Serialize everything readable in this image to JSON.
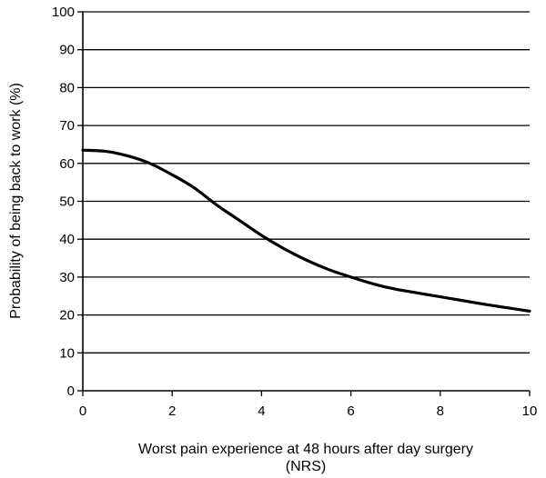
{
  "chart_data": {
    "type": "line",
    "title": "",
    "xlabel": "Worst pain experience at 48 hours after day surgery",
    "xlabel_line2": "(NRS)",
    "ylabel": "Probability of being back to work (%)",
    "xlim": [
      0,
      10
    ],
    "ylim": [
      0,
      100
    ],
    "x_ticks": [
      0,
      2,
      4,
      6,
      8,
      10
    ],
    "y_ticks": [
      0,
      10,
      20,
      30,
      40,
      50,
      60,
      70,
      80,
      90,
      100
    ],
    "grid": "horizontal",
    "legend": "none",
    "series": [
      {
        "color": "#000000",
        "x": [
          0,
          0.5,
          1,
          1.5,
          2,
          2.5,
          3,
          3.5,
          4,
          4.5,
          5,
          5.5,
          6,
          6.5,
          7,
          7.5,
          8,
          8.5,
          9,
          9.5,
          10
        ],
        "y": [
          63.5,
          63.2,
          62,
          60,
          57,
          53.5,
          49,
          45,
          41,
          37.5,
          34.5,
          32,
          30,
          28.2,
          26.8,
          25.8,
          24.8,
          23.8,
          22.8,
          21.9,
          21
        ]
      }
    ]
  }
}
